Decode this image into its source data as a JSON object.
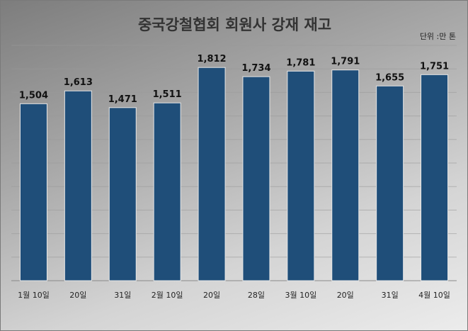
{
  "chart_data": {
    "type": "bar",
    "title": "중국강철협회 회원사 강재 재고",
    "unit_label": "단위 :만 톤",
    "categories": [
      "1월 10일",
      "20일",
      "31일",
      "2월 10일",
      "20일",
      "28일",
      "3월 10일",
      "20일",
      "31일",
      "4월 10일"
    ],
    "values": [
      1504,
      1613,
      1471,
      1511,
      1812,
      1734,
      1781,
      1791,
      1655,
      1751
    ],
    "value_labels": [
      "1,504",
      "1,613",
      "1,471",
      "1,511",
      "1,812",
      "1,734",
      "1,781",
      "1,791",
      "1,655",
      "1,751"
    ],
    "ylim": [
      0,
      2000
    ],
    "grid": true,
    "bar_color": "#1f4e79"
  }
}
